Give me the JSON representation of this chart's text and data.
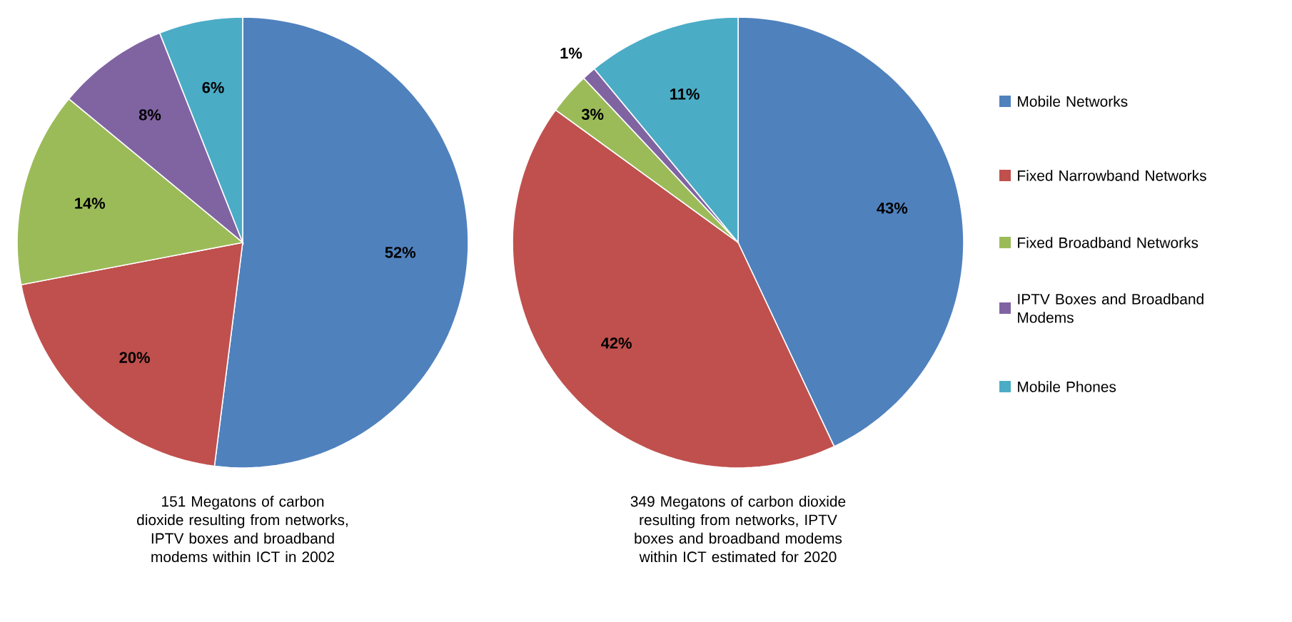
{
  "chart_data": [
    {
      "type": "pie",
      "title": "151 Megatons of carbon dioxide resulting from networks, IPTV boxes and broadband modems within ICT in 2002",
      "categories": [
        null,
        null,
        null,
        null,
        null
      ],
      "values": [
        52,
        20,
        14,
        8,
        6
      ],
      "value_labels": [
        "52%",
        "20%",
        "14%",
        "8%",
        "6%"
      ],
      "colors": [
        "#4f81bd",
        "#c0504d",
        "#9bbb59",
        "#8064a2",
        "#4bacc6"
      ]
    },
    {
      "type": "pie",
      "title": "349 Megatons of carbon dioxide resulting from networks, IPTV boxes and broadband modems within ICT estimated for 2020",
      "categories": [
        "Mobile Networks",
        "Fixed Narrowband Networks",
        "Fixed Broadband Networks",
        "IPTV Boxes and Broadband Modems",
        "Mobile Phones"
      ],
      "values": [
        43,
        42,
        3,
        1,
        11
      ],
      "value_labels": [
        "43%",
        "42%",
        "3%",
        "1%",
        "11%"
      ],
      "colors": [
        "#4f81bd",
        "#c0504d",
        "#9bbb59",
        "#8064a2",
        "#4bacc6"
      ],
      "legend": "right"
    }
  ]
}
